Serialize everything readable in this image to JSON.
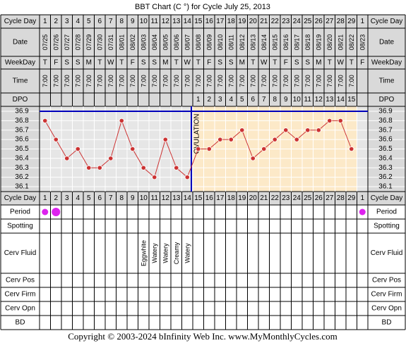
{
  "title": "BBT Chart (C °) for Cycle July 25, 2013",
  "footer": "Copyright © 2003-2024 bInfinity Web Inc.    www.MyMonthlyCycles.com",
  "row_labels": {
    "cycle_day": "Cycle Day",
    "date": "Date",
    "weekday": "WeekDay",
    "time": "Time",
    "dpo": "DPO",
    "period": "Period",
    "spotting": "Spotting",
    "cerv_fluid": "Cerv Fluid",
    "cerv_pos": "Cerv Pos",
    "cerv_firm": "Cerv Firm",
    "cerv_opn": "Cerv Opn",
    "bd": "BD"
  },
  "cycle_days": [
    "1",
    "2",
    "3",
    "4",
    "5",
    "6",
    "7",
    "8",
    "9",
    "10",
    "11",
    "12",
    "13",
    "14",
    "15",
    "16",
    "17",
    "18",
    "19",
    "20",
    "21",
    "22",
    "23",
    "24",
    "25",
    "26",
    "27",
    "28",
    "29",
    "1"
  ],
  "dates": [
    "07/25",
    "07/26",
    "07/27",
    "07/28",
    "07/29",
    "07/30",
    "07/31",
    "08/01",
    "08/02",
    "08/03",
    "08/04",
    "08/05",
    "08/06",
    "08/07",
    "08/08",
    "08/09",
    "08/10",
    "08/11",
    "08/12",
    "08/13",
    "08/14",
    "08/15",
    "08/16",
    "08/17",
    "08/18",
    "08/19",
    "08/20",
    "08/21",
    "08/22",
    "08/23"
  ],
  "weekdays": [
    "T",
    "F",
    "S",
    "S",
    "M",
    "T",
    "W",
    "T",
    "F",
    "S",
    "S",
    "M",
    "T",
    "W",
    "T",
    "F",
    "S",
    "S",
    "M",
    "T",
    "W",
    "T",
    "F",
    "S",
    "S",
    "M",
    "T",
    "W",
    "T",
    "F"
  ],
  "times": [
    "7:00",
    "7:00",
    "7:00",
    "7:00",
    "7:00",
    "7:00",
    "7:00",
    "7:00",
    "7:00",
    "7:00",
    "7:00",
    "7:00",
    "7:00",
    "7:00",
    "7:00",
    "7:00",
    "7:00",
    "7:00",
    "7:00",
    "7:00",
    "7:00",
    "7:00",
    "7:00",
    "7:00",
    "7:00",
    "7:00",
    "7:00",
    "7:00",
    "7:00",
    ""
  ],
  "dpo": [
    "",
    "",
    "",
    "",
    "",
    "",
    "",
    "",
    "",
    "",
    "",
    "",
    "",
    "",
    "1",
    "2",
    "3",
    "4",
    "5",
    "6",
    "7",
    "8",
    "9",
    "10",
    "11",
    "12",
    "13",
    "14",
    "15",
    ""
  ],
  "period": [
    true,
    true,
    false,
    false,
    false,
    false,
    false,
    false,
    false,
    false,
    false,
    false,
    false,
    false,
    false,
    false,
    false,
    false,
    false,
    false,
    false,
    false,
    false,
    false,
    false,
    false,
    false,
    false,
    false,
    true
  ],
  "period_size": [
    "small",
    "large",
    "",
    "",
    "",
    "",
    "",
    "",
    "",
    "",
    "",
    "",
    "",
    "",
    "",
    "",
    "",
    "",
    "",
    "",
    "",
    "",
    "",
    "",
    "",
    "",
    "",
    "",
    "",
    "small"
  ],
  "cerv_fluid": [
    "",
    "",
    "",
    "",
    "",
    "",
    "",
    "",
    "",
    "Eggwhite",
    "Watery",
    "Watery",
    "Creamy",
    "Watery",
    "",
    "",
    "",
    "",
    "",
    "",
    "",
    "",
    "",
    "",
    "",
    "",
    "",
    "",
    "",
    ""
  ],
  "ovulation_label": "OVULATION",
  "colors": {
    "temp_line": "#cc3333",
    "temp_point": "#cc3333",
    "coverline": "#0000bb",
    "postovulation_bg": "#fce9c8",
    "period_dot": "#dd22ee",
    "header_bg": "#d9d9d9",
    "grid": "#000000"
  },
  "chart_data": {
    "type": "line",
    "title": "BBT Chart (C °) for Cycle July 25, 2013",
    "x": [
      "1",
      "2",
      "3",
      "4",
      "5",
      "6",
      "7",
      "8",
      "9",
      "10",
      "11",
      "12",
      "13",
      "14",
      "15",
      "16",
      "17",
      "18",
      "19",
      "20",
      "21",
      "22",
      "23",
      "24",
      "25",
      "26",
      "27",
      "28",
      "29",
      "1"
    ],
    "y_ticks": [
      "36.9",
      "36.8",
      "36.7",
      "36.6",
      "36.5",
      "36.4",
      "36.3",
      "36.2",
      "36.1"
    ],
    "ylim": [
      36.1,
      36.9
    ],
    "series": [
      {
        "values": [
          36.8,
          36.6,
          36.4,
          36.5,
          36.3,
          36.3,
          36.4,
          36.8,
          36.5,
          36.3,
          36.2,
          36.6,
          36.3,
          36.2,
          36.5,
          36.5,
          36.6,
          36.6,
          36.7,
          36.4,
          36.5,
          36.6,
          36.7,
          36.6,
          36.7,
          36.7,
          36.8,
          36.8,
          36.5,
          null
        ]
      }
    ],
    "coverline": 36.9,
    "ovulation_day_index": 13,
    "grid": true
  }
}
